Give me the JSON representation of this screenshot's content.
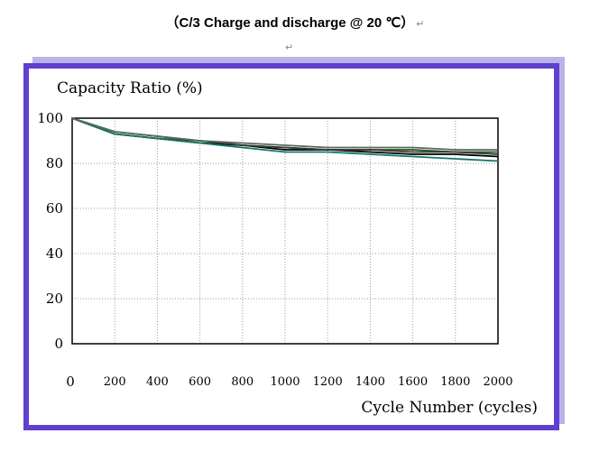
{
  "title": "（C/3 Charge and discharge @ 20 ℃）",
  "para_mark": "↵",
  "colors": {
    "frame": "#5f3fd0",
    "shadow": "#b9b3e6",
    "grid": "#999999"
  },
  "chart_data": {
    "type": "line",
    "ylabel": "Capacity Ratio (%)",
    "xlabel": "Cycle Number (cycles)",
    "xlim": [
      0,
      2000
    ],
    "ylim": [
      0,
      100
    ],
    "grid": true,
    "x_ticks": [
      "0",
      "200",
      "400",
      "600",
      "800",
      "1000",
      "1200",
      "1400",
      "1600",
      "1800",
      "2000"
    ],
    "y_ticks": [
      "0",
      "20",
      "40",
      "60",
      "80",
      "100"
    ],
    "series": [
      {
        "color": "#000000",
        "x": [
          0,
          200,
          400,
          600,
          800,
          1000,
          1200,
          1400,
          1600,
          1800,
          2000
        ],
        "values": [
          100,
          93,
          91,
          89,
          88,
          86,
          86,
          85,
          84,
          84,
          83
        ]
      },
      {
        "color": "#1e5a1e",
        "x": [
          0,
          200,
          400,
          600,
          800,
          1000,
          1200,
          1400,
          1600,
          1800,
          2000
        ],
        "values": [
          100,
          94,
          92,
          90,
          88,
          87,
          86,
          86,
          86,
          85,
          85
        ]
      },
      {
        "color": "#3a3a3a",
        "x": [
          0,
          200,
          400,
          600,
          800,
          1000,
          1200,
          1400,
          1600,
          1800,
          2000
        ],
        "values": [
          100,
          93,
          91,
          90,
          88,
          87,
          86,
          86,
          85,
          85,
          84
        ]
      },
      {
        "color": "#0f7a6a",
        "x": [
          0,
          200,
          400,
          600,
          800,
          1000,
          1200,
          1400,
          1600,
          1800,
          2000
        ],
        "values": [
          100,
          93,
          91,
          89,
          87,
          85,
          85,
          84,
          83,
          82,
          81
        ]
      },
      {
        "color": "#5a6a5a",
        "x": [
          0,
          200,
          400,
          600,
          800,
          1000,
          1200,
          1400,
          1600,
          1800,
          2000
        ],
        "values": [
          100,
          94,
          92,
          90,
          89,
          88,
          87,
          87,
          87,
          86,
          86
        ]
      }
    ]
  }
}
